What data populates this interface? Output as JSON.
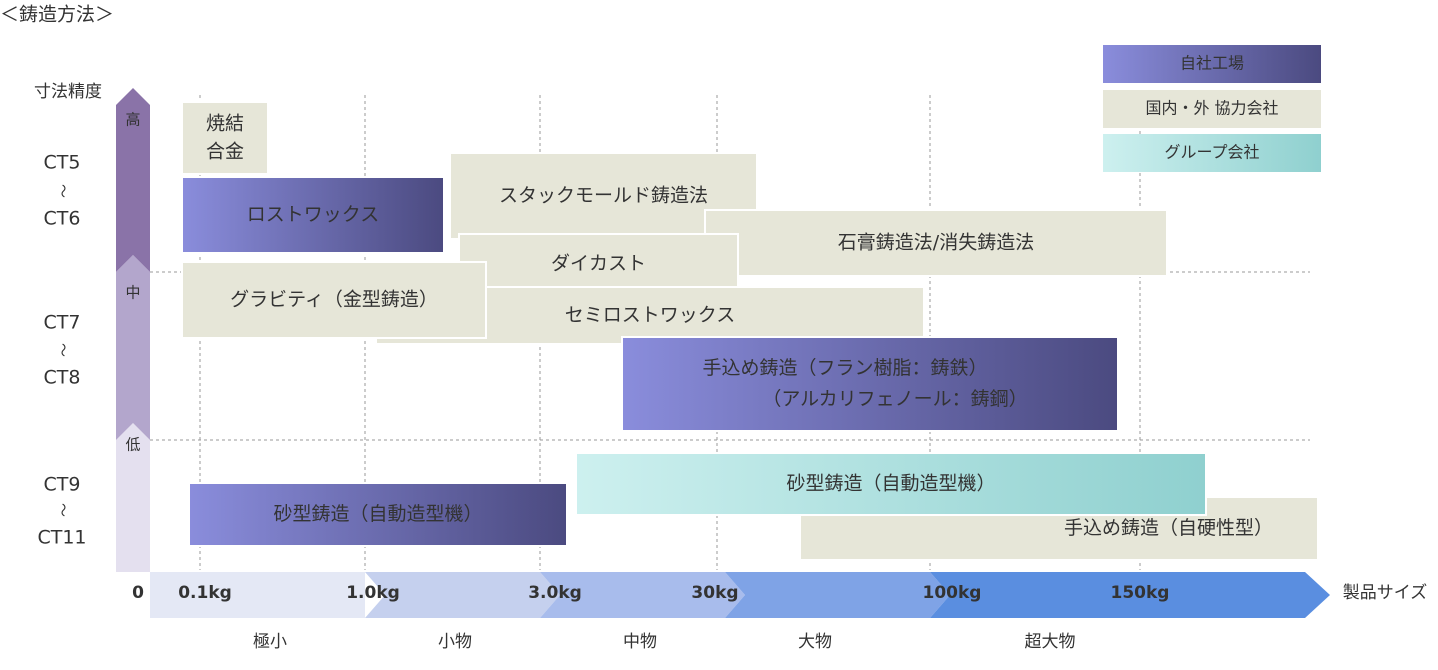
{
  "header": {
    "title": "＜鋳造方法＞"
  },
  "axis_y": {
    "label": "寸法精度",
    "levels": [
      "高",
      "中",
      "低"
    ],
    "groups": [
      [
        "CT5",
        "〜",
        "CT6"
      ],
      [
        "CT7",
        "〜",
        "CT8"
      ],
      [
        "CT9",
        "〜",
        "CT11"
      ]
    ]
  },
  "axis_x": {
    "label": "製品サイズ",
    "ticks": [
      "0",
      "0.1kg",
      "1.0kg",
      "3.0kg",
      "30kg",
      "100kg",
      "150kg"
    ],
    "categories": [
      "極小",
      "小物",
      "中物",
      "大物",
      "超大物"
    ]
  },
  "legend": [
    {
      "label": "自社工場",
      "color": [
        "#8a8ddc",
        "#4b4a80"
      ],
      "text_color": "#ffffff"
    },
    {
      "label": "国内・外 協力会社",
      "color": [
        "#e6e6d8",
        "#e6e6d8"
      ],
      "text_color": "#333333"
    },
    {
      "label": "グループ会社",
      "color": [
        "#cdf0ef",
        "#8fd0cf"
      ],
      "text_color": "#333333"
    }
  ],
  "boxes": [
    {
      "lines": [
        "焼結",
        "合金"
      ],
      "color": [
        "#e6e6d8",
        "#e6e6d8"
      ],
      "text_color": "#333333"
    },
    {
      "lines": [
        "ロストワックス"
      ],
      "color": [
        "#8a8ddc",
        "#4b4a80"
      ],
      "text_color": "#ffffff"
    },
    {
      "lines": [
        "スタックモールド鋳造法"
      ],
      "color": [
        "#e6e6d8",
        "#e6e6d8"
      ],
      "text_color": "#333333"
    },
    {
      "lines": [
        "石膏鋳造法/消失鋳造法"
      ],
      "color": [
        "#e6e6d8",
        "#e6e6d8"
      ],
      "text_color": "#333333"
    },
    {
      "lines": [
        "ダイカスト"
      ],
      "color": [
        "#e6e6d8",
        "#e6e6d8"
      ],
      "text_color": "#333333"
    },
    {
      "lines": [
        "セミロストワックス"
      ],
      "color": [
        "#e6e6d8",
        "#e6e6d8"
      ],
      "text_color": "#333333"
    },
    {
      "lines": [
        "グラビティ（金型鋳造）"
      ],
      "color": [
        "#e6e6d8",
        "#e6e6d8"
      ],
      "text_color": "#333333"
    },
    {
      "lines": [
        "手込め鋳造（フラン樹脂：鋳鉄）",
        "（アルカリフェノール：鋳鋼）"
      ],
      "color": [
        "#8a8ddc",
        "#4b4a80"
      ],
      "text_color": "#ffffff"
    },
    {
      "lines": [
        "砂型鋳造（自動造型機）"
      ],
      "color": [
        "#8a8ddc",
        "#4b4a80"
      ],
      "text_color": "#ffffff"
    },
    {
      "lines": [
        "手込め鋳造（自硬性型）"
      ],
      "color": [
        "#e6e6d8",
        "#e6e6d8"
      ],
      "text_color": "#333333"
    },
    {
      "lines": [
        "砂型鋳造（自動造型機）"
      ],
      "color": [
        "#cdf0ef",
        "#8fd0cf"
      ],
      "text_color": "#333333"
    }
  ]
}
